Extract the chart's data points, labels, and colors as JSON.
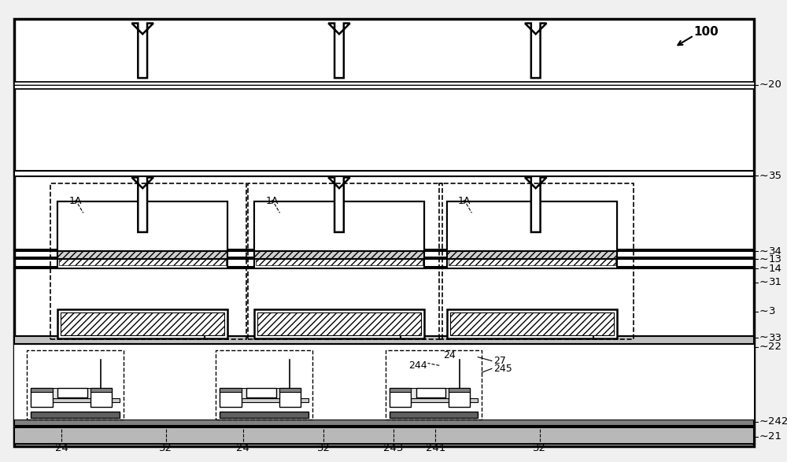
{
  "fig_width": 10.0,
  "fig_height": 5.87,
  "bg_color": "#f0f0f0",
  "label_100": "100",
  "labels_right": [
    "20",
    "35",
    "34",
    "13",
    "14",
    "31",
    "3",
    "33",
    "22",
    "242",
    "21"
  ],
  "labels_bottom": [
    "24",
    "32",
    "24",
    "32",
    "243",
    "241",
    "32"
  ],
  "labels_1A": "1A",
  "labels_misc": [
    "24",
    "244",
    "27",
    "245"
  ]
}
